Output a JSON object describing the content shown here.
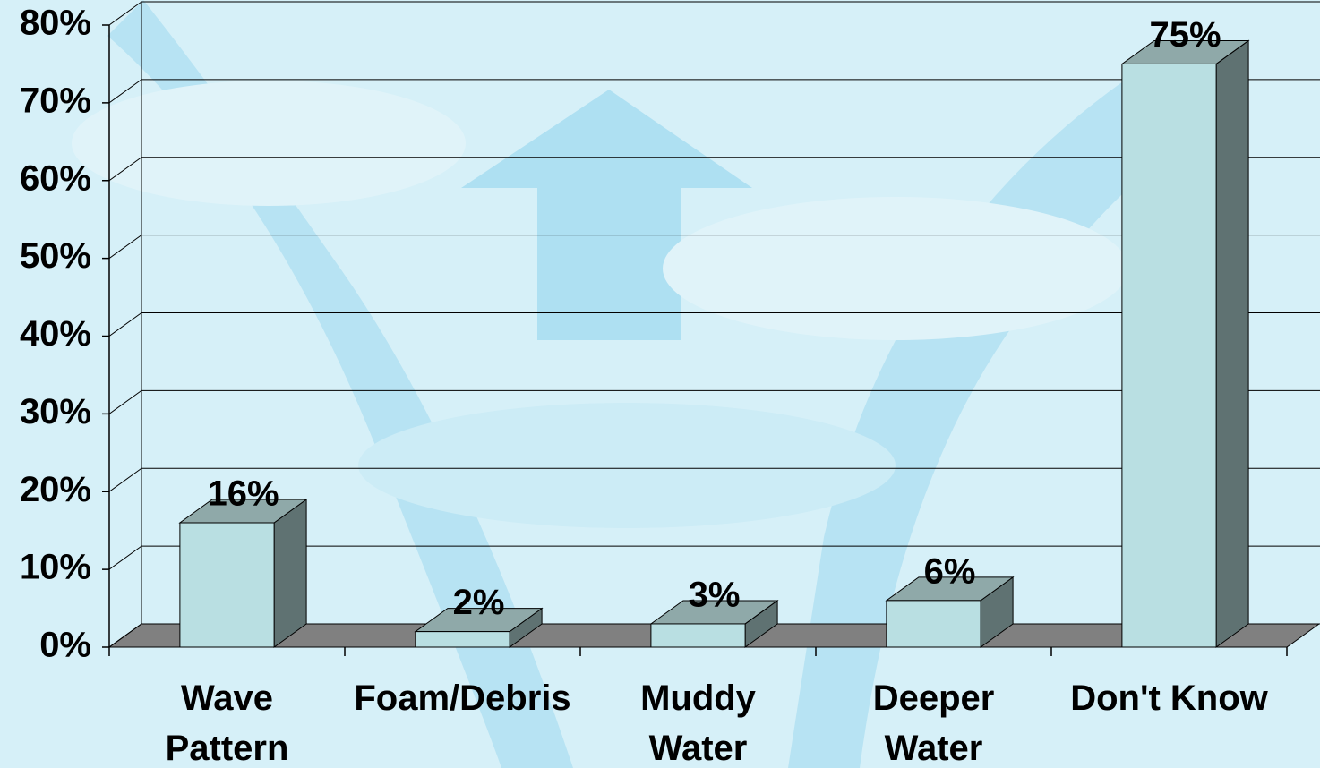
{
  "chart_data": {
    "type": "bar3d",
    "categories": [
      "Wave\nPattern",
      "Foam/Debris",
      "Muddy\nWater",
      "Deeper\nWater",
      "Don't Know"
    ],
    "values": [
      16,
      2,
      3,
      6,
      75
    ],
    "value_labels": [
      "16%",
      "2%",
      "3%",
      "6%",
      "75%"
    ],
    "color": "#b9dfe2",
    "ylim": [
      0,
      80
    ],
    "yticks": [
      {
        "value": 0,
        "label": "0%"
      },
      {
        "value": 10,
        "label": "10%"
      },
      {
        "value": 20,
        "label": "20%"
      },
      {
        "value": 30,
        "label": "30%"
      },
      {
        "value": 40,
        "label": "40%"
      },
      {
        "value": 50,
        "label": "50%"
      },
      {
        "value": 60,
        "label": "60%"
      },
      {
        "value": 70,
        "label": "70%"
      },
      {
        "value": 80,
        "label": "80%"
      }
    ],
    "grid": true
  }
}
